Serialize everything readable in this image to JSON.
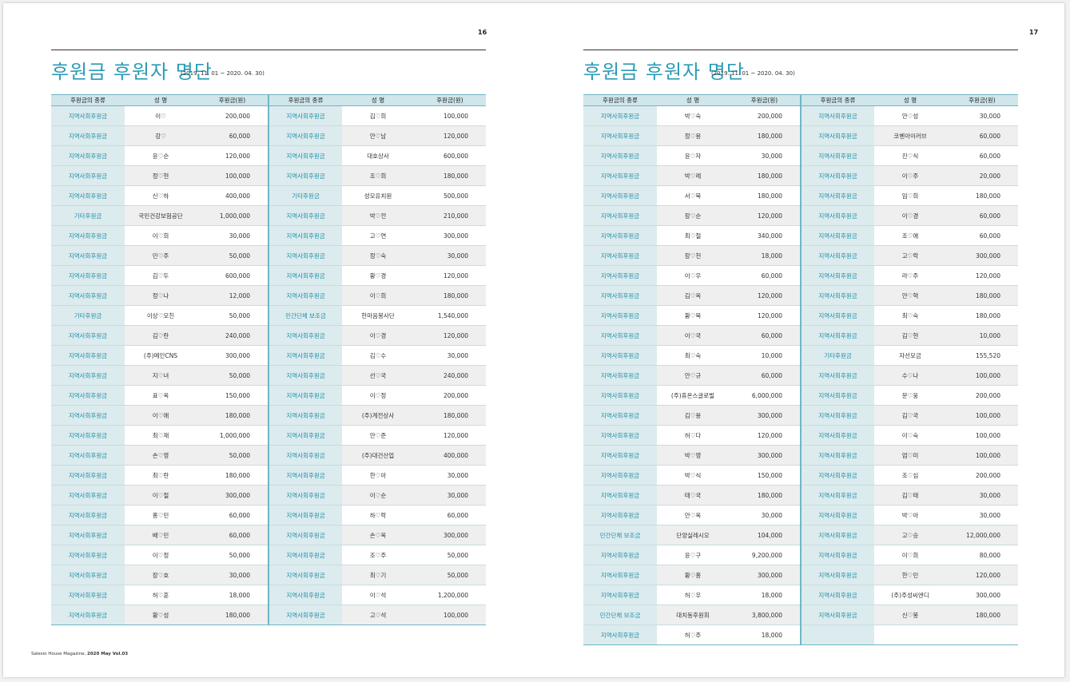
{
  "left_page": {
    "page_number": "16",
    "title": "후원금 후원자 명단",
    "period": "(2019. 11. 01 ~ 2020. 04. 30)",
    "headers": [
      "후원금의 종류",
      "성 명",
      "후원금(원)",
      "후원금의 종류",
      "성 명",
      "후원금(원)"
    ],
    "rows": [
      [
        "지역사회후원금",
        "이♡",
        "200,000",
        "지역사회후원금",
        "김♡희",
        "100,000"
      ],
      [
        "지역사회후원금",
        "강♡",
        "60,000",
        "지역사회후원금",
        "안♡남",
        "120,000"
      ],
      [
        "지역사회후원금",
        "윤♡순",
        "120,000",
        "지역사회후원금",
        "대호상사",
        "600,000"
      ],
      [
        "지역사회후원금",
        "정♡현",
        "100,000",
        "지역사회후원금",
        "조♡희",
        "180,000"
      ],
      [
        "지역사회후원금",
        "신♡하",
        "400,000",
        "기타후원금",
        "성모유치원",
        "500,000"
      ],
      [
        "기타후원금",
        "국민건강보험공단",
        "1,000,000",
        "지역사회후원금",
        "박♡전",
        "210,000"
      ],
      [
        "지역사회후원금",
        "이♡희",
        "30,000",
        "지역사회후원금",
        "고♡연",
        "300,000"
      ],
      [
        "지역사회후원금",
        "민♡주",
        "50,000",
        "지역사회후원금",
        "정♡숙",
        "30,000"
      ],
      [
        "지역사회후원금",
        "김♡두",
        "600,000",
        "지역사회후원금",
        "황♡경",
        "120,000"
      ],
      [
        "지역사회후원금",
        "정♡나",
        "12,000",
        "지역사회후원금",
        "이♡희",
        "180,000"
      ],
      [
        "기타후원금",
        "이상♡모친",
        "50,000",
        "민간단체 보조금",
        "한마음봉사단",
        "1,540,000"
      ],
      [
        "지역사회후원금",
        "김♡란",
        "240,000",
        "지역사회후원금",
        "이♡경",
        "120,000"
      ],
      [
        "지역사회후원금",
        "(주)메인CNS",
        "300,000",
        "지역사회후원금",
        "김♡수",
        "30,000"
      ],
      [
        "지역사회후원금",
        "지♡녀",
        "50,000",
        "지역사회후원금",
        "선♡국",
        "240,000"
      ],
      [
        "지역사회후원금",
        "표♡옥",
        "150,000",
        "지역사회후원금",
        "이♡정",
        "200,000"
      ],
      [
        "지역사회후원금",
        "이♡애",
        "180,000",
        "지역사회후원금",
        "(주)계전상사",
        "180,000"
      ],
      [
        "지역사회후원금",
        "최♡재",
        "1,000,000",
        "지역사회후원금",
        "안♡준",
        "120,000"
      ],
      [
        "지역사회후원금",
        "손♡영",
        "50,000",
        "지역사회후원금",
        "(주)대건산업",
        "400,000"
      ],
      [
        "지역사회후원금",
        "최♡란",
        "180,000",
        "지역사회후원금",
        "한♡아",
        "30,000"
      ],
      [
        "지역사회후원금",
        "이♡철",
        "300,000",
        "지역사회후원금",
        "이♡순",
        "30,000"
      ],
      [
        "지역사회후원금",
        "홍♡민",
        "60,000",
        "지역사회후원금",
        "하♡락",
        "60,000"
      ],
      [
        "지역사회후원금",
        "배♡민",
        "60,000",
        "지역사회후원금",
        "손♡옥",
        "300,000"
      ],
      [
        "지역사회후원금",
        "이♡정",
        "50,000",
        "지역사회후원금",
        "조♡주",
        "50,000"
      ],
      [
        "지역사회후원금",
        "장♡호",
        "30,000",
        "지역사회후원금",
        "최♡기",
        "50,000"
      ],
      [
        "지역사회후원금",
        "허♡훈",
        "18,000",
        "지역사회후원금",
        "이♡석",
        "1,200,000"
      ],
      [
        "지역사회후원금",
        "황♡성",
        "180,000",
        "지역사회후원금",
        "고♡석",
        "100,000"
      ]
    ],
    "footer_text": "Salesio House Magazine, ",
    "footer_bold": "2020 May Vol.03"
  },
  "right_page": {
    "page_number": "17",
    "title": "후원금 후원자 명단",
    "period": "(2019. 11. 01 ~ 2020. 04. 30)",
    "headers": [
      "후원금의 종류",
      "성 명",
      "후원금(원)",
      "후원금의 종류",
      "성 명",
      "후원금(원)"
    ],
    "rows": [
      [
        "지역사회후원금",
        "박♡숙",
        "200,000",
        "지역사회후원금",
        "안♡성",
        "30,000"
      ],
      [
        "지역사회후원금",
        "정♡용",
        "180,000",
        "지역사회후원금",
        "코벤아이러브",
        "60,000"
      ],
      [
        "지역사회후원금",
        "윤♡자",
        "30,000",
        "지역사회후원금",
        "진♡식",
        "60,000"
      ],
      [
        "지역사회후원금",
        "박♡례",
        "180,000",
        "지역사회후원금",
        "이♡주",
        "20,000"
      ],
      [
        "지역사회후원금",
        "서♡북",
        "180,000",
        "지역사회후원금",
        "임♡희",
        "180,000"
      ],
      [
        "지역사회후원금",
        "장♡순",
        "120,000",
        "지역사회후원금",
        "이♡경",
        "60,000"
      ],
      [
        "지역사회후원금",
        "최♡철",
        "340,000",
        "지역사회후원금",
        "조♡애",
        "60,000"
      ],
      [
        "지역사회후원금",
        "장♡천",
        "18,000",
        "지역사회후원금",
        "고♡락",
        "300,000"
      ],
      [
        "지역사회후원금",
        "이♡우",
        "60,000",
        "지역사회후원금",
        "라♡주",
        "120,000"
      ],
      [
        "지역사회후원금",
        "김♡옥",
        "120,000",
        "지역사회후원금",
        "안♡혁",
        "180,000"
      ],
      [
        "지역사회후원금",
        "황♡북",
        "120,000",
        "지역사회후원금",
        "최♡숙",
        "180,000"
      ],
      [
        "지역사회후원금",
        "이♡국",
        "60,000",
        "지역사회후원금",
        "김♡현",
        "10,000"
      ],
      [
        "지역사회후원금",
        "최♡숙",
        "10,000",
        "기타후원금",
        "자선모금",
        "155,520"
      ],
      [
        "지역사회후원금",
        "안♡규",
        "60,000",
        "지역사회후원금",
        "수♡나",
        "100,000"
      ],
      [
        "지역사회후원금",
        "(주)휴온스글로벌",
        "6,000,000",
        "지역사회후원금",
        "문♡웅",
        "200,000"
      ],
      [
        "지역사회후원금",
        "김♡용",
        "300,000",
        "지역사회후원금",
        "김♡국",
        "100,000"
      ],
      [
        "지역사회후원금",
        "허♡다",
        "120,000",
        "지역사회후원금",
        "이♡숙",
        "100,000"
      ],
      [
        "지역사회후원금",
        "박♡영",
        "300,000",
        "지역사회후원금",
        "엄♡미",
        "100,000"
      ],
      [
        "지역사회후원금",
        "박♡식",
        "150,000",
        "지역사회후원금",
        "조♡심",
        "200,000"
      ],
      [
        "지역사회후원금",
        "태♡국",
        "180,000",
        "지역사회후원금",
        "김♡태",
        "30,000"
      ],
      [
        "지역사회후원금",
        "안♡옥",
        "30,000",
        "지역사회후원금",
        "박♡아",
        "30,000"
      ],
      [
        "민간단체 보조금",
        "단양실레시오",
        "104,000",
        "지역사회후원금",
        "고♡승",
        "12,000,000"
      ],
      [
        "지역사회후원금",
        "윤♡구",
        "9,200,000",
        "지역사회후원금",
        "이♡희",
        "80,000"
      ],
      [
        "지역사회후원금",
        "황♡홍",
        "300,000",
        "지역사회후원금",
        "한♡민",
        "120,000"
      ],
      [
        "지역사회후원금",
        "허♡우",
        "18,000",
        "지역사회후원금",
        "(주)주성씨엔디",
        "300,000"
      ],
      [
        "민간단체 보조금",
        "대치동후원회",
        "3,800,000",
        "지역사회후원금",
        "신♡봉",
        "180,000"
      ],
      [
        "지역사회후원금",
        "허♡주",
        "18,000",
        "",
        "",
        ""
      ]
    ]
  },
  "colors": {
    "accent": "#2a9bb5",
    "header_bg": "#cfe6ea",
    "type_cell_bg": "#dcebee",
    "alt_row_bg": "#efefef",
    "border": "#6fb6c6"
  }
}
